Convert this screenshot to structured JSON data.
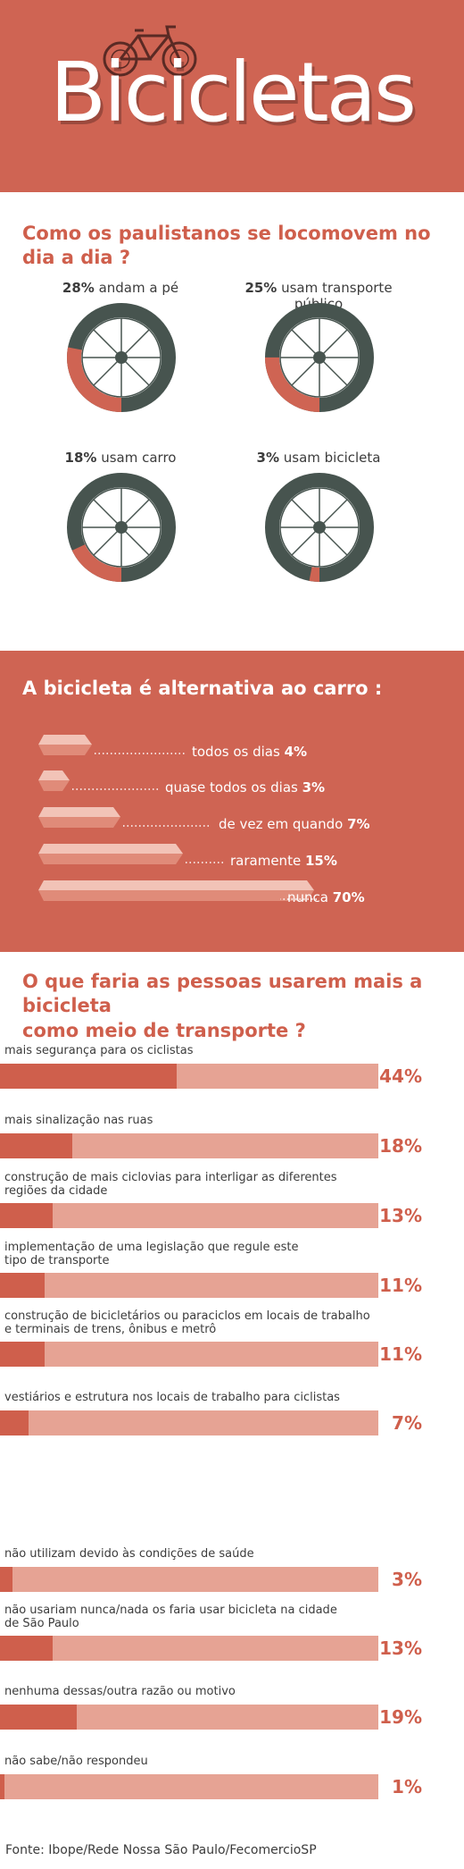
{
  "header": {
    "title": "Bicicletas",
    "colors": {
      "accent": "#cf6453",
      "dark": "#47544f",
      "light_bar": "#e6a394"
    },
    "icon": "bicycle-icon"
  },
  "commute": {
    "title": "Como os paulistanos se locomovem no dia a dia ?",
    "items": [
      {
        "pct": "28%",
        "label": "andam a pé",
        "value": 28
      },
      {
        "pct": "25%",
        "label": "usam transporte público",
        "value": 25
      },
      {
        "pct": "18%",
        "label": "usam carro",
        "value": 18
      },
      {
        "pct": "3%",
        "label": "usam bicicleta",
        "value": 3
      }
    ]
  },
  "alternative": {
    "title": "A bicicleta é alternativa ao carro :",
    "items": [
      {
        "label": "todos os dias",
        "pct": "4%",
        "value": 4
      },
      {
        "label": "quase todos os dias",
        "pct": "3%",
        "value": 3
      },
      {
        "label": "de vez em quando",
        "pct": "7%",
        "value": 7
      },
      {
        "label": "raramente",
        "pct": "15%",
        "value": 15
      },
      {
        "label": "nunca",
        "pct": "70%",
        "value": 70
      }
    ]
  },
  "question": {
    "title_line1": "O que faria as pessoas usarem mais a bicicleta",
    "title_line2": "como meio de transporte ?",
    "items": [
      {
        "label1": "mais segurança para os ciclistas",
        "label2": "",
        "pct": "44%",
        "value": 44
      },
      {
        "label1": "mais sinalização nas ruas",
        "label2": "",
        "pct": "18%",
        "value": 18
      },
      {
        "label1": "construção de mais ciclovias para interligar as diferentes",
        "label2": "regiões da cidade",
        "pct": "13%",
        "value": 13
      },
      {
        "label1": "implementação de uma legislação que regule este",
        "label2": "tipo de transporte",
        "pct": "11%",
        "value": 11
      },
      {
        "label1": "construção de bicicletários ou paraciclos em locais de trabalho",
        "label2": "e terminais de trens, ônibus e metrô",
        "pct": "11%",
        "value": 11
      },
      {
        "label1": "vestiários e estrutura nos locais de trabalho para ciclistas",
        "label2": "",
        "pct": "7%",
        "value": 7
      },
      {
        "label1": "não utilizam devido às condições de saúde",
        "label2": "",
        "pct": "3%",
        "value": 3
      },
      {
        "label1": "não usariam nunca/nada os faria usar bicicleta na cidade",
        "label2": "de São Paulo",
        "pct": "13%",
        "value": 13
      },
      {
        "label1": "nenhuma dessas/outra razão ou motivo",
        "label2": "",
        "pct": "19%",
        "value": 19
      },
      {
        "label1": "não sabe/não respondeu",
        "label2": "",
        "pct": "1%",
        "value": 1
      }
    ]
  },
  "source": "Fonte: Ibope/Rede Nossa São Paulo/FecomercioSP",
  "chart_data": [
    {
      "type": "pie",
      "categories": [
        "andam a pé",
        "usam transporte público",
        "usam carro",
        "usam bicicleta"
      ],
      "values": [
        28,
        25,
        18,
        3
      ],
      "title": "Como os paulistanos se locomovem no dia a dia ?"
    },
    {
      "type": "bar",
      "categories": [
        "todos os dias",
        "quase todos os dias",
        "de vez em quando",
        "raramente",
        "nunca"
      ],
      "values": [
        4,
        3,
        7,
        15,
        70
      ],
      "title": "A bicicleta é alternativa ao carro :"
    },
    {
      "type": "bar",
      "categories": [
        "mais segurança para os ciclistas",
        "mais sinalização nas ruas",
        "construção de mais ciclovias para interligar as diferentes regiões da cidade",
        "implementação de uma legislação que regule este tipo de transporte",
        "construção de bicicletários ou paraciclos em locais de trabalho e terminais de trens, ônibus e metrô",
        "vestiários e estrutura nos locais de trabalho para ciclistas",
        "não utilizam devido às condições de saúde",
        "não usariam nunca/nada os faria usar bicicleta na cidade de São Paulo",
        "nenhuma dessas/outra razão ou motivo",
        "não sabe/não respondeu"
      ],
      "values": [
        44,
        18,
        13,
        11,
        11,
        7,
        3,
        13,
        19,
        1
      ],
      "title": "O que faria as pessoas usarem mais a bicicleta como meio de transporte ?",
      "xlim": [
        0,
        100
      ]
    }
  ]
}
